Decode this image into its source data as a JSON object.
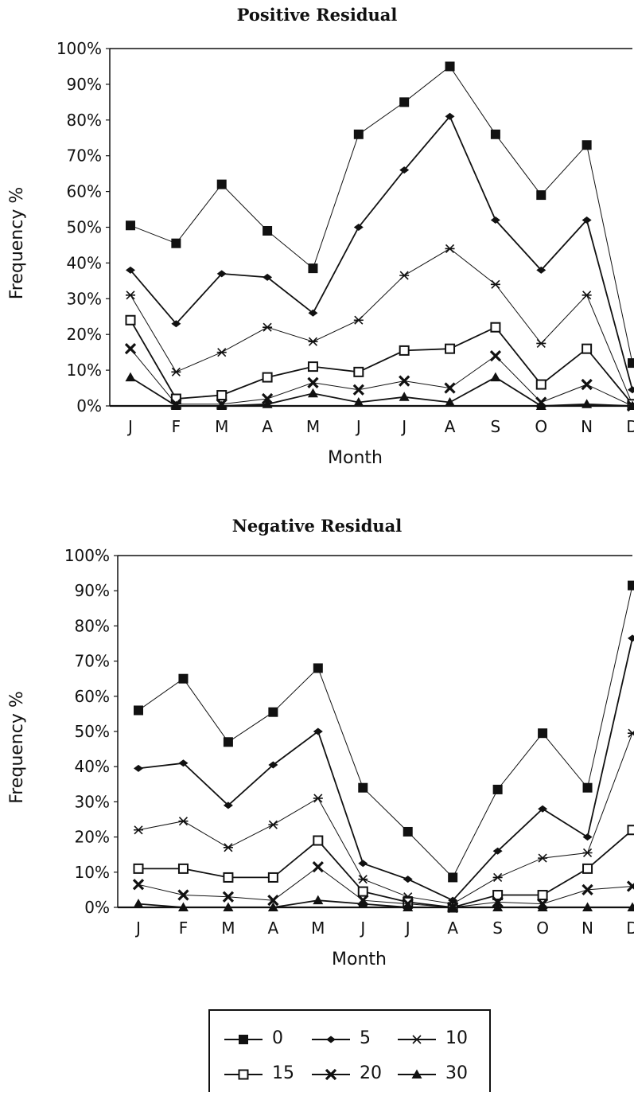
{
  "chart_data": [
    {
      "type": "line",
      "title": "Positive Residual",
      "xlabel": "Month",
      "ylabel": "Frequency %",
      "categories": [
        "J",
        "F",
        "M",
        "A",
        "M",
        "J",
        "J",
        "A",
        "S",
        "O",
        "N",
        "D"
      ],
      "ylim": [
        0,
        100
      ],
      "yticks": [
        "0%",
        "10%",
        "20%",
        "30%",
        "40%",
        "50%",
        "60%",
        "70%",
        "80%",
        "90%",
        "100%"
      ],
      "grid": false,
      "series": [
        {
          "name": "0",
          "marker": "filled-square",
          "values": [
            50.5,
            45.5,
            62,
            49,
            38.5,
            76,
            85,
            95,
            76,
            59,
            73,
            12
          ]
        },
        {
          "name": "5",
          "marker": "diamond",
          "values": [
            38,
            23,
            37,
            36,
            26,
            50,
            66,
            81,
            52,
            38,
            52,
            4.5
          ]
        },
        {
          "name": "10",
          "marker": "asterisk",
          "values": [
            31,
            9.5,
            15,
            22,
            18,
            24,
            36.5,
            44,
            34,
            17.5,
            31,
            0.5
          ]
        },
        {
          "name": "15",
          "marker": "open-square",
          "values": [
            24,
            2,
            3,
            8,
            11,
            9.5,
            15.5,
            16,
            22,
            6,
            16,
            0.5
          ]
        },
        {
          "name": "20",
          "marker": "x",
          "values": [
            16,
            0.5,
            0.5,
            2,
            6.5,
            4.5,
            7,
            5,
            14,
            1,
            6,
            0
          ]
        },
        {
          "name": "30",
          "marker": "triangle",
          "values": [
            8,
            0,
            0,
            0.5,
            3.5,
            1,
            2.5,
            1,
            8,
            0,
            0.5,
            0
          ]
        }
      ]
    },
    {
      "type": "line",
      "title": "Negative Residual",
      "xlabel": "Month",
      "ylabel": "Frequency %",
      "categories": [
        "J",
        "F",
        "M",
        "A",
        "M",
        "J",
        "J",
        "A",
        "S",
        "O",
        "N",
        "D"
      ],
      "ylim": [
        0,
        100
      ],
      "yticks": [
        "0%",
        "10%",
        "20%",
        "30%",
        "40%",
        "50%",
        "60%",
        "70%",
        "80%",
        "90%",
        "100%"
      ],
      "grid": false,
      "series": [
        {
          "name": "0",
          "marker": "filled-square",
          "values": [
            56,
            65,
            47,
            55.5,
            68,
            34,
            21.5,
            8.5,
            33.5,
            49.5,
            34,
            91.5
          ]
        },
        {
          "name": "5",
          "marker": "diamond",
          "values": [
            39.5,
            41,
            29,
            40.5,
            50,
            12.5,
            8,
            2,
            16,
            28,
            20,
            76.5
          ]
        },
        {
          "name": "10",
          "marker": "asterisk",
          "values": [
            22,
            24.5,
            17,
            23.5,
            31,
            8,
            3,
            1,
            8.5,
            14,
            15.5,
            49.5
          ]
        },
        {
          "name": "15",
          "marker": "open-square",
          "values": [
            11,
            11,
            8.5,
            8.5,
            19,
            4.5,
            1.5,
            0,
            3.5,
            3.5,
            11,
            22
          ]
        },
        {
          "name": "20",
          "marker": "x",
          "values": [
            6.5,
            3.5,
            3,
            2,
            11.5,
            2,
            1,
            0,
            1.5,
            1,
            5,
            6
          ]
        },
        {
          "name": "30",
          "marker": "triangle",
          "values": [
            1,
            0,
            0,
            0,
            2,
            1,
            0,
            0,
            0,
            0,
            0,
            0
          ]
        }
      ]
    }
  ],
  "legend": {
    "placement": "bottom-center",
    "entries": [
      {
        "label": "0",
        "marker": "filled-square"
      },
      {
        "label": "5",
        "marker": "diamond"
      },
      {
        "label": "10",
        "marker": "asterisk"
      },
      {
        "label": "15",
        "marker": "open-square"
      },
      {
        "label": "20",
        "marker": "x"
      },
      {
        "label": "30",
        "marker": "triangle"
      }
    ]
  }
}
